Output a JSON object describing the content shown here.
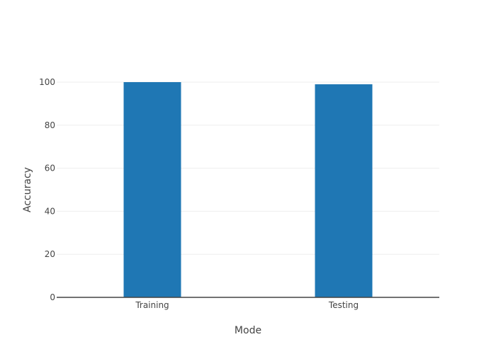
{
  "chart_data": {
    "type": "bar",
    "categories": [
      "Training",
      "Testing"
    ],
    "values": [
      100,
      99
    ],
    "xlabel": "Mode",
    "ylabel": "Accuracy",
    "ylim": [
      0,
      100
    ],
    "yticks": [
      0,
      20,
      40,
      60,
      80,
      100
    ],
    "grid": true,
    "bar_color": "#1f77b4"
  }
}
